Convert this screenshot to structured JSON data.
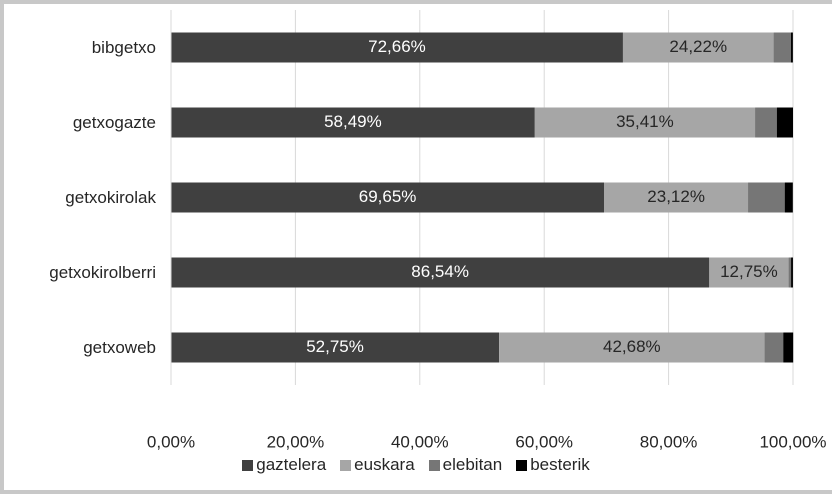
{
  "chart_data": {
    "type": "stacked_bar_horizontal",
    "categories": [
      "bibgetxo",
      "getxogazte",
      "getxokirolak",
      "getxokirolberri",
      "getxoweb"
    ],
    "series": [
      {
        "name": "gaztelera",
        "color": "#404040",
        "values": [
          72.66,
          58.49,
          69.65,
          86.54,
          52.75
        ],
        "value_labels": [
          "72,66%",
          "58,49%",
          "69,65%",
          "86,54%",
          "52,75%"
        ]
      },
      {
        "name": "euskara",
        "color": "#a6a6a6",
        "values": [
          24.22,
          35.41,
          23.12,
          12.75,
          42.68
        ],
        "value_labels": [
          "24,22%",
          "35,41%",
          "23,12%",
          "12,75%",
          "42,68%"
        ]
      },
      {
        "name": "elebitan",
        "color": "#767676",
        "values": [
          2.8,
          3.5,
          5.9,
          0.4,
          3.0
        ]
      },
      {
        "name": "besterik",
        "color": "#000000",
        "values": [
          0.3,
          2.6,
          1.3,
          0.3,
          1.6
        ]
      }
    ],
    "xlim": [
      0,
      100
    ],
    "xticks": [
      {
        "value": 0,
        "label": "0,00%"
      },
      {
        "value": 20,
        "label": "20,00%"
      },
      {
        "value": 40,
        "label": "40,00%"
      },
      {
        "value": 60,
        "label": "60,00%"
      },
      {
        "value": 80,
        "label": "80,00%"
      },
      {
        "value": 100,
        "label": "100,00%"
      }
    ],
    "grid": true
  }
}
